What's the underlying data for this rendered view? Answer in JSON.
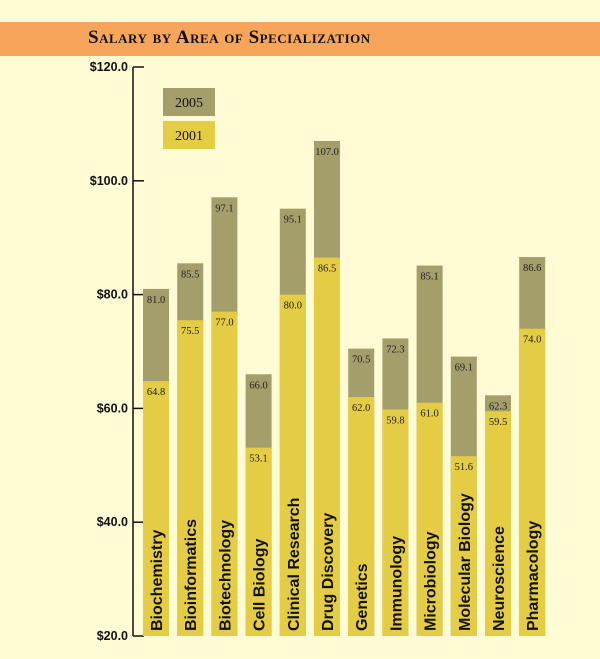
{
  "chart_data": {
    "type": "bar",
    "title": "Salary by Area of Specialization",
    "categories": [
      "Biochemistry",
      "Bioinformatics",
      "Biotechnology",
      "Cell Biology",
      "Clinical Research",
      "Drug Discovery",
      "Genetics",
      "Immunology",
      "Microbiology",
      "Molecular Biology",
      "Neuroscience",
      "Pharmacology"
    ],
    "series": [
      {
        "name": "2005",
        "values": [
          81.0,
          85.5,
          97.1,
          66.0,
          95.1,
          107.0,
          70.5,
          72.3,
          85.1,
          69.1,
          62.3,
          86.6
        ],
        "labels": [
          "81.0",
          "85.5",
          "97.1",
          "66.0",
          "95.1",
          "107.0",
          "70.5",
          "72.3",
          "85.1",
          "69.1",
          "62.3",
          "86.6"
        ]
      },
      {
        "name": "2001",
        "values": [
          64.8,
          75.5,
          77.0,
          53.1,
          80.0,
          86.5,
          62.0,
          59.8,
          61.0,
          51.6,
          59.5,
          74.0
        ],
        "labels": [
          "64.8",
          "75.5",
          "77.0",
          "53.1",
          "80.0",
          "86.5",
          "62.0",
          "59.8",
          "61.0",
          "51.6",
          "59.5",
          "74.0"
        ]
      }
    ],
    "yticks": [
      "$120.0",
      "$100.0",
      "$80.0",
      "$60.0",
      "$40.0",
      "$20.0"
    ],
    "ytick_values": [
      120,
      100,
      80,
      60,
      40,
      20
    ],
    "ylim": [
      20,
      120
    ],
    "xlabel": "",
    "ylabel": "",
    "legend_position": "top-left",
    "grid": false,
    "colors": {
      "2005": "#a49e6b",
      "2001": "#e4cc44",
      "background": "#fffbd5",
      "title_band": "#f6a55b",
      "axis": "#111111"
    }
  }
}
